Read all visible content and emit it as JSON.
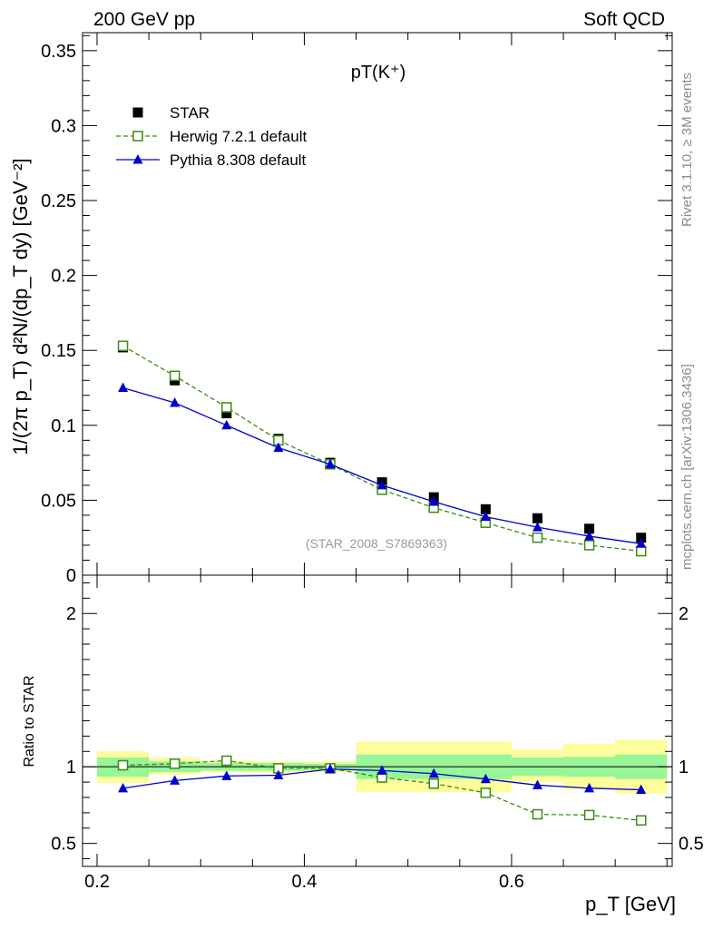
{
  "header": {
    "left": "200 GeV pp",
    "right": "Soft QCD"
  },
  "side_labels": {
    "rivet": "Rivet 3.1.10, ≥ 3M events",
    "mcplots": "mcplots.cern.ch [arXiv:1306.3436]"
  },
  "chart_data": {
    "type": "line",
    "title": "pT(K⁺)",
    "source_label": "(STAR_2008_S7869363)",
    "x_axis": {
      "label": "p_T [GeV]",
      "range": [
        0.186,
        0.755
      ],
      "ticks": [
        0.2,
        0.4,
        0.6
      ],
      "tick_labels": [
        "0.2",
        "0.4",
        "0.6"
      ]
    },
    "y_axis_main": {
      "label": "1/(2π p_T) d²N/(dp_T dy) [GeV⁻²]",
      "range": [
        0,
        0.362
      ],
      "ticks": [
        0,
        0.05,
        0.1,
        0.15,
        0.2,
        0.25,
        0.3,
        0.35
      ],
      "tick_labels": [
        "0",
        "0.05",
        "0.1",
        "0.15",
        "0.2",
        "0.25",
        "0.3",
        "0.35"
      ]
    },
    "y_axis_ratio": {
      "label": "Ratio to STAR",
      "range": [
        0.35,
        2.25
      ],
      "ticks": [
        0.5,
        1,
        2
      ],
      "tick_labels": [
        "0.5",
        "1",
        "2"
      ]
    },
    "legend": {
      "placement": "top-left",
      "entries": [
        "STAR",
        "Herwig 7.2.1 default",
        "Pythia 8.308 default"
      ]
    },
    "x": [
      0.225,
      0.275,
      0.325,
      0.375,
      0.425,
      0.475,
      0.525,
      0.575,
      0.625,
      0.675,
      0.725
    ],
    "series": [
      {
        "name": "STAR",
        "color": "#000000",
        "marker": "square",
        "values": [
          0.152,
          0.13,
          0.108,
          0.091,
          0.075,
          0.062,
          0.052,
          0.044,
          0.038,
          0.031,
          0.025
        ]
      },
      {
        "name": "Herwig 7.2.1 default",
        "color": "#3a8c12",
        "marker": "open-square",
        "line": "dashed",
        "values": [
          0.153,
          0.133,
          0.112,
          0.09,
          0.074,
          0.057,
          0.045,
          0.035,
          0.025,
          0.02,
          0.016
        ],
        "ratio": [
          1.01,
          1.02,
          1.04,
          0.99,
          0.99,
          0.93,
          0.89,
          0.83,
          0.69,
          0.685,
          0.65
        ]
      },
      {
        "name": "Pythia 8.308 default",
        "color": "#0000cc",
        "marker": "filled-triangle",
        "line": "solid",
        "values": [
          0.125,
          0.115,
          0.1,
          0.085,
          0.074,
          0.06,
          0.049,
          0.039,
          0.032,
          0.026,
          0.021
        ],
        "ratio": [
          0.86,
          0.91,
          0.94,
          0.945,
          0.985,
          0.975,
          0.955,
          0.92,
          0.88,
          0.86,
          0.85
        ]
      }
    ],
    "uncertainty_bands": {
      "x_edges": [
        0.2,
        0.25,
        0.3,
        0.35,
        0.4,
        0.45,
        0.5,
        0.55,
        0.6,
        0.65,
        0.7,
        0.75
      ],
      "inner": {
        "color": "#98f598",
        "low": [
          0.935,
          0.965,
          0.975,
          0.975,
          0.98,
          0.92,
          0.92,
          0.92,
          0.94,
          0.935,
          0.92
        ],
        "high": [
          1.06,
          1.035,
          1.025,
          1.025,
          1.02,
          1.08,
          1.08,
          1.08,
          1.06,
          1.065,
          1.08
        ]
      },
      "outer": {
        "color": "#fdfd9c",
        "low": [
          0.895,
          0.95,
          0.965,
          0.965,
          0.965,
          0.835,
          0.835,
          0.835,
          0.9,
          0.855,
          0.825
        ],
        "high": [
          1.1,
          1.06,
          1.04,
          1.035,
          1.035,
          1.165,
          1.165,
          1.165,
          1.115,
          1.15,
          1.175
        ]
      }
    }
  }
}
